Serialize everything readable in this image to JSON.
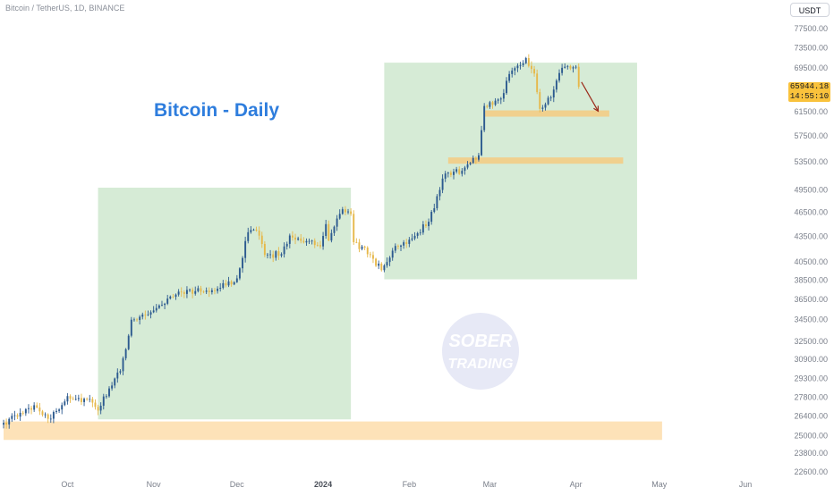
{
  "header": {
    "symbol": "Bitcoin / TetherUS, 1D, BINANCE",
    "currency": "USDT"
  },
  "annotation": {
    "title": "Bitcoin - Daily",
    "watermark_line1": "SOBER",
    "watermark_line2": "TRADING"
  },
  "price_tag": {
    "price": "65944.18",
    "countdown": "14:55:10"
  },
  "colors": {
    "candle_up": "#2c5a8f",
    "candle_down": "#e6b84a",
    "zone_green": "#d6ebd6",
    "zone_orange": "#fde2b8",
    "level_yellow": "#f0d08e",
    "arrow": "#9b2a1a",
    "heading": "#2e7ddd",
    "price_tag_bg": "#f9c23c"
  },
  "chart_data": {
    "type": "candlestick",
    "title": "Bitcoin - Daily",
    "scale": "log",
    "ylim": [
      22600,
      77500
    ],
    "y_ticks": [
      "77500.00",
      "73500.00",
      "69500.00",
      "65500.00",
      "61500.00",
      "57500.00",
      "53500.00",
      "49500.00",
      "46500.00",
      "43500.00",
      "40500.00",
      "38500.00",
      "36500.00",
      "34500.00",
      "32500.00",
      "30900.00",
      "29300.00",
      "27800.00",
      "26400.00",
      "25000.00",
      "23800.00",
      "22600.00"
    ],
    "x_ticks": [
      "Oct",
      "Nov",
      "Dec",
      "2024",
      "Feb",
      "Mar",
      "Apr",
      "May",
      "Jun"
    ],
    "x_start_date": "2023-09-08",
    "last_price": 65944.18,
    "anchors": [
      {
        "date": "2023-09-08",
        "close": 25900
      },
      {
        "date": "2023-09-15",
        "close": 26600
      },
      {
        "date": "2023-09-19",
        "close": 27200
      },
      {
        "date": "2023-09-25",
        "close": 26200
      },
      {
        "date": "2023-10-01",
        "close": 27900
      },
      {
        "date": "2023-10-10",
        "close": 27400
      },
      {
        "date": "2023-10-12",
        "close": 26800
      },
      {
        "date": "2023-10-16",
        "close": 28500
      },
      {
        "date": "2023-10-20",
        "close": 29900
      },
      {
        "date": "2023-10-23",
        "close": 33000
      },
      {
        "date": "2023-10-24",
        "close": 34500
      },
      {
        "date": "2023-11-01",
        "close": 35400
      },
      {
        "date": "2023-11-10",
        "close": 37300
      },
      {
        "date": "2023-11-20",
        "close": 37400
      },
      {
        "date": "2023-11-25",
        "close": 37700
      },
      {
        "date": "2023-12-01",
        "close": 38700
      },
      {
        "date": "2023-12-05",
        "close": 44000
      },
      {
        "date": "2023-12-08",
        "close": 44200
      },
      {
        "date": "2023-12-11",
        "close": 41300
      },
      {
        "date": "2023-12-17",
        "close": 41400
      },
      {
        "date": "2023-12-20",
        "close": 43600
      },
      {
        "date": "2023-12-31",
        "close": 42300
      },
      {
        "date": "2024-01-02",
        "close": 45000
      },
      {
        "date": "2024-01-03",
        "close": 43000
      },
      {
        "date": "2024-01-08",
        "close": 46900
      },
      {
        "date": "2024-01-11",
        "close": 46300
      },
      {
        "date": "2024-01-12",
        "close": 42800
      },
      {
        "date": "2024-01-18",
        "close": 41300
      },
      {
        "date": "2024-01-22",
        "close": 39600
      },
      {
        "date": "2024-01-26",
        "close": 41800
      },
      {
        "date": "2024-02-01",
        "close": 43100
      },
      {
        "date": "2024-02-08",
        "close": 45300
      },
      {
        "date": "2024-02-14",
        "close": 51800
      },
      {
        "date": "2024-02-20",
        "close": 52200
      },
      {
        "date": "2024-02-26",
        "close": 54500
      },
      {
        "date": "2024-02-28",
        "close": 62500
      },
      {
        "date": "2024-03-05",
        "close": 63800
      },
      {
        "date": "2024-03-08",
        "close": 68300
      },
      {
        "date": "2024-03-14",
        "close": 71400
      },
      {
        "date": "2024-03-17",
        "close": 68400
      },
      {
        "date": "2024-03-19",
        "close": 62000
      },
      {
        "date": "2024-03-23",
        "close": 64000
      },
      {
        "date": "2024-03-27",
        "close": 69500
      },
      {
        "date": "2024-04-01",
        "close": 69700
      },
      {
        "date": "2024-04-02",
        "close": 65944.18
      }
    ],
    "zones": [
      {
        "kind": "green",
        "from": "2023-10-12",
        "to": "2024-01-11",
        "low": 26150,
        "high": 49800
      },
      {
        "kind": "green",
        "from": "2024-01-23",
        "to": "2024-04-23",
        "low": 38600,
        "high": 70500
      },
      {
        "kind": "orange",
        "from": "2023-09-08",
        "to": "2024-05-02",
        "low": 24700,
        "high": 26000
      }
    ],
    "levels": [
      {
        "price": 61200,
        "from": "2024-02-28",
        "to": "2024-04-13"
      },
      {
        "price": 53700,
        "from": "2024-02-15",
        "to": "2024-04-18"
      }
    ],
    "projection": {
      "from_date": "2024-04-03",
      "from_price": 66800,
      "to_date": "2024-04-09",
      "to_price": 61600
    }
  }
}
